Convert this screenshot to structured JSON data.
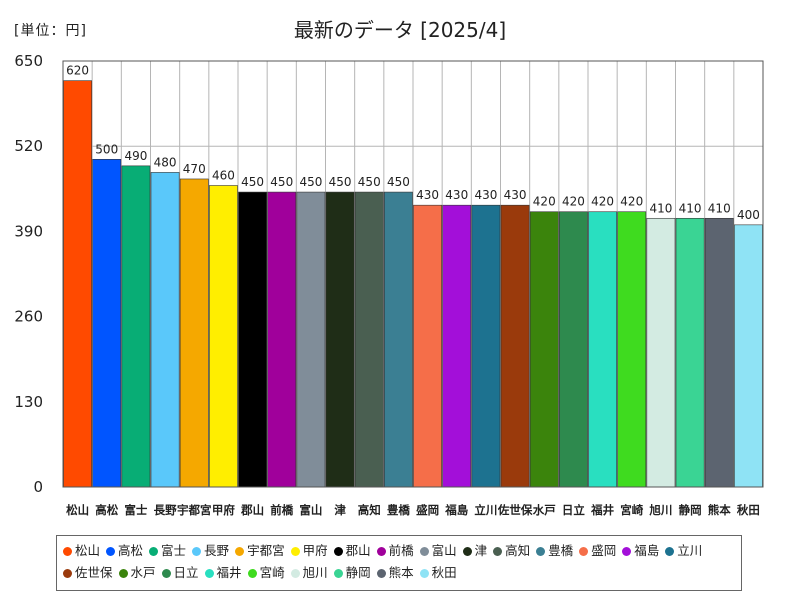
{
  "chart_data": {
    "type": "bar",
    "title": "最新のデータ [2025/4]",
    "unit_label": "[単位：円]",
    "xlabel": "",
    "ylabel": "",
    "ylim": [
      0,
      650
    ],
    "yticks": [
      0,
      130,
      260,
      390,
      520,
      650
    ],
    "grid": true,
    "legend_position": "bottom",
    "categories": [
      "松山",
      "高松",
      "富士",
      "長野",
      "宇都宮",
      "甲府",
      "郡山",
      "前橋",
      "富山",
      "津",
      "高知",
      "豊橋",
      "盛岡",
      "福島",
      "立川",
      "佐世保",
      "水戸",
      "日立",
      "福井",
      "宮崎",
      "旭川",
      "静岡",
      "熊本",
      "秋田"
    ],
    "values": [
      620,
      500,
      490,
      480,
      470,
      460,
      450,
      450,
      450,
      450,
      450,
      450,
      430,
      430,
      430,
      430,
      420,
      420,
      420,
      420,
      410,
      410,
      410,
      400
    ],
    "colors": [
      "#ff4a00",
      "#0055ff",
      "#08ad75",
      "#5ac8fa",
      "#f5a800",
      "#ffee00",
      "#000000",
      "#a0009b",
      "#808d99",
      "#1f2d17",
      "#4a5f51",
      "#3b7f93",
      "#f56e49",
      "#a30fd9",
      "#1d7290",
      "#9a3a0c",
      "#3b840c",
      "#2e8a4e",
      "#29dfc0",
      "#3fdb1f",
      "#d3ebe2",
      "#3ad494",
      "#5c6470",
      "#8fe3f5"
    ]
  }
}
